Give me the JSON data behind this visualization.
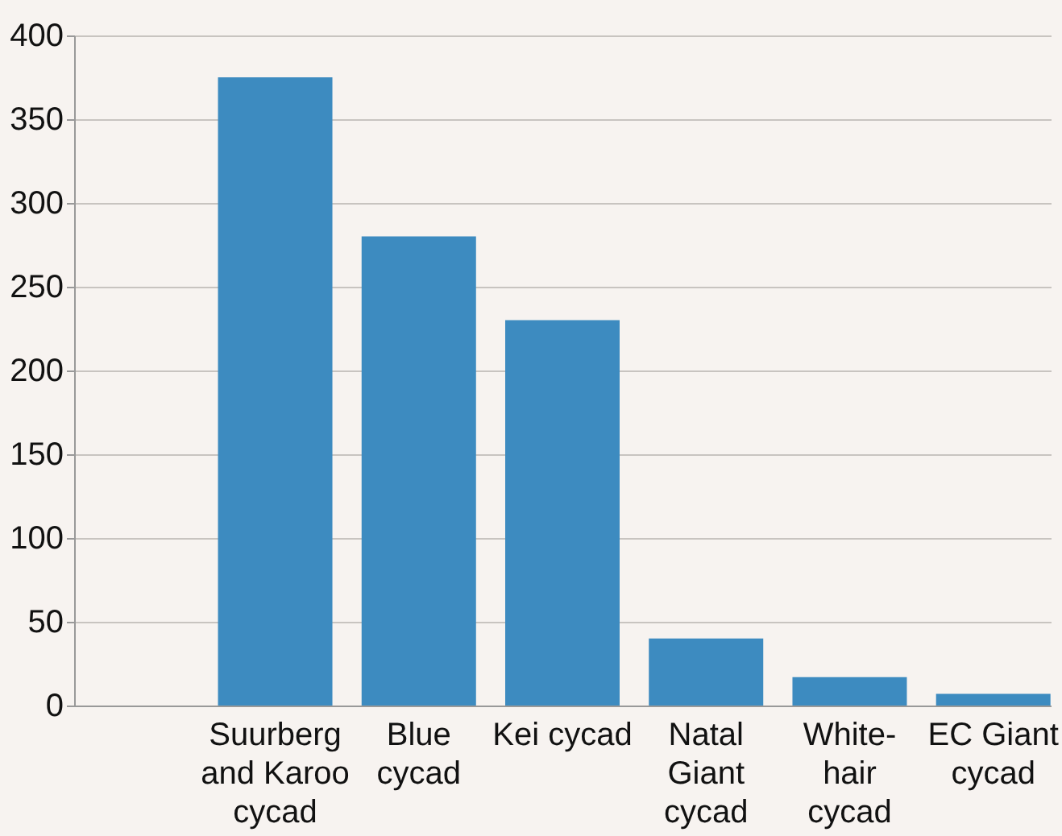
{
  "chart_data": {
    "type": "bar",
    "categories": [
      null,
      "Suurberg and Karoo cycad",
      "Blue cycad",
      "Kei cycad",
      "Natal Giant cycad",
      "White-hair cycad",
      "EC Giant cycad"
    ],
    "values": [
      null,
      375,
      280,
      230,
      40,
      17,
      7
    ],
    "color": "#3d8bc0",
    "ylim": [
      0,
      400
    ],
    "yticks": [
      0,
      50,
      100,
      150,
      200,
      250,
      300,
      350,
      400
    ],
    "grid": "y"
  }
}
